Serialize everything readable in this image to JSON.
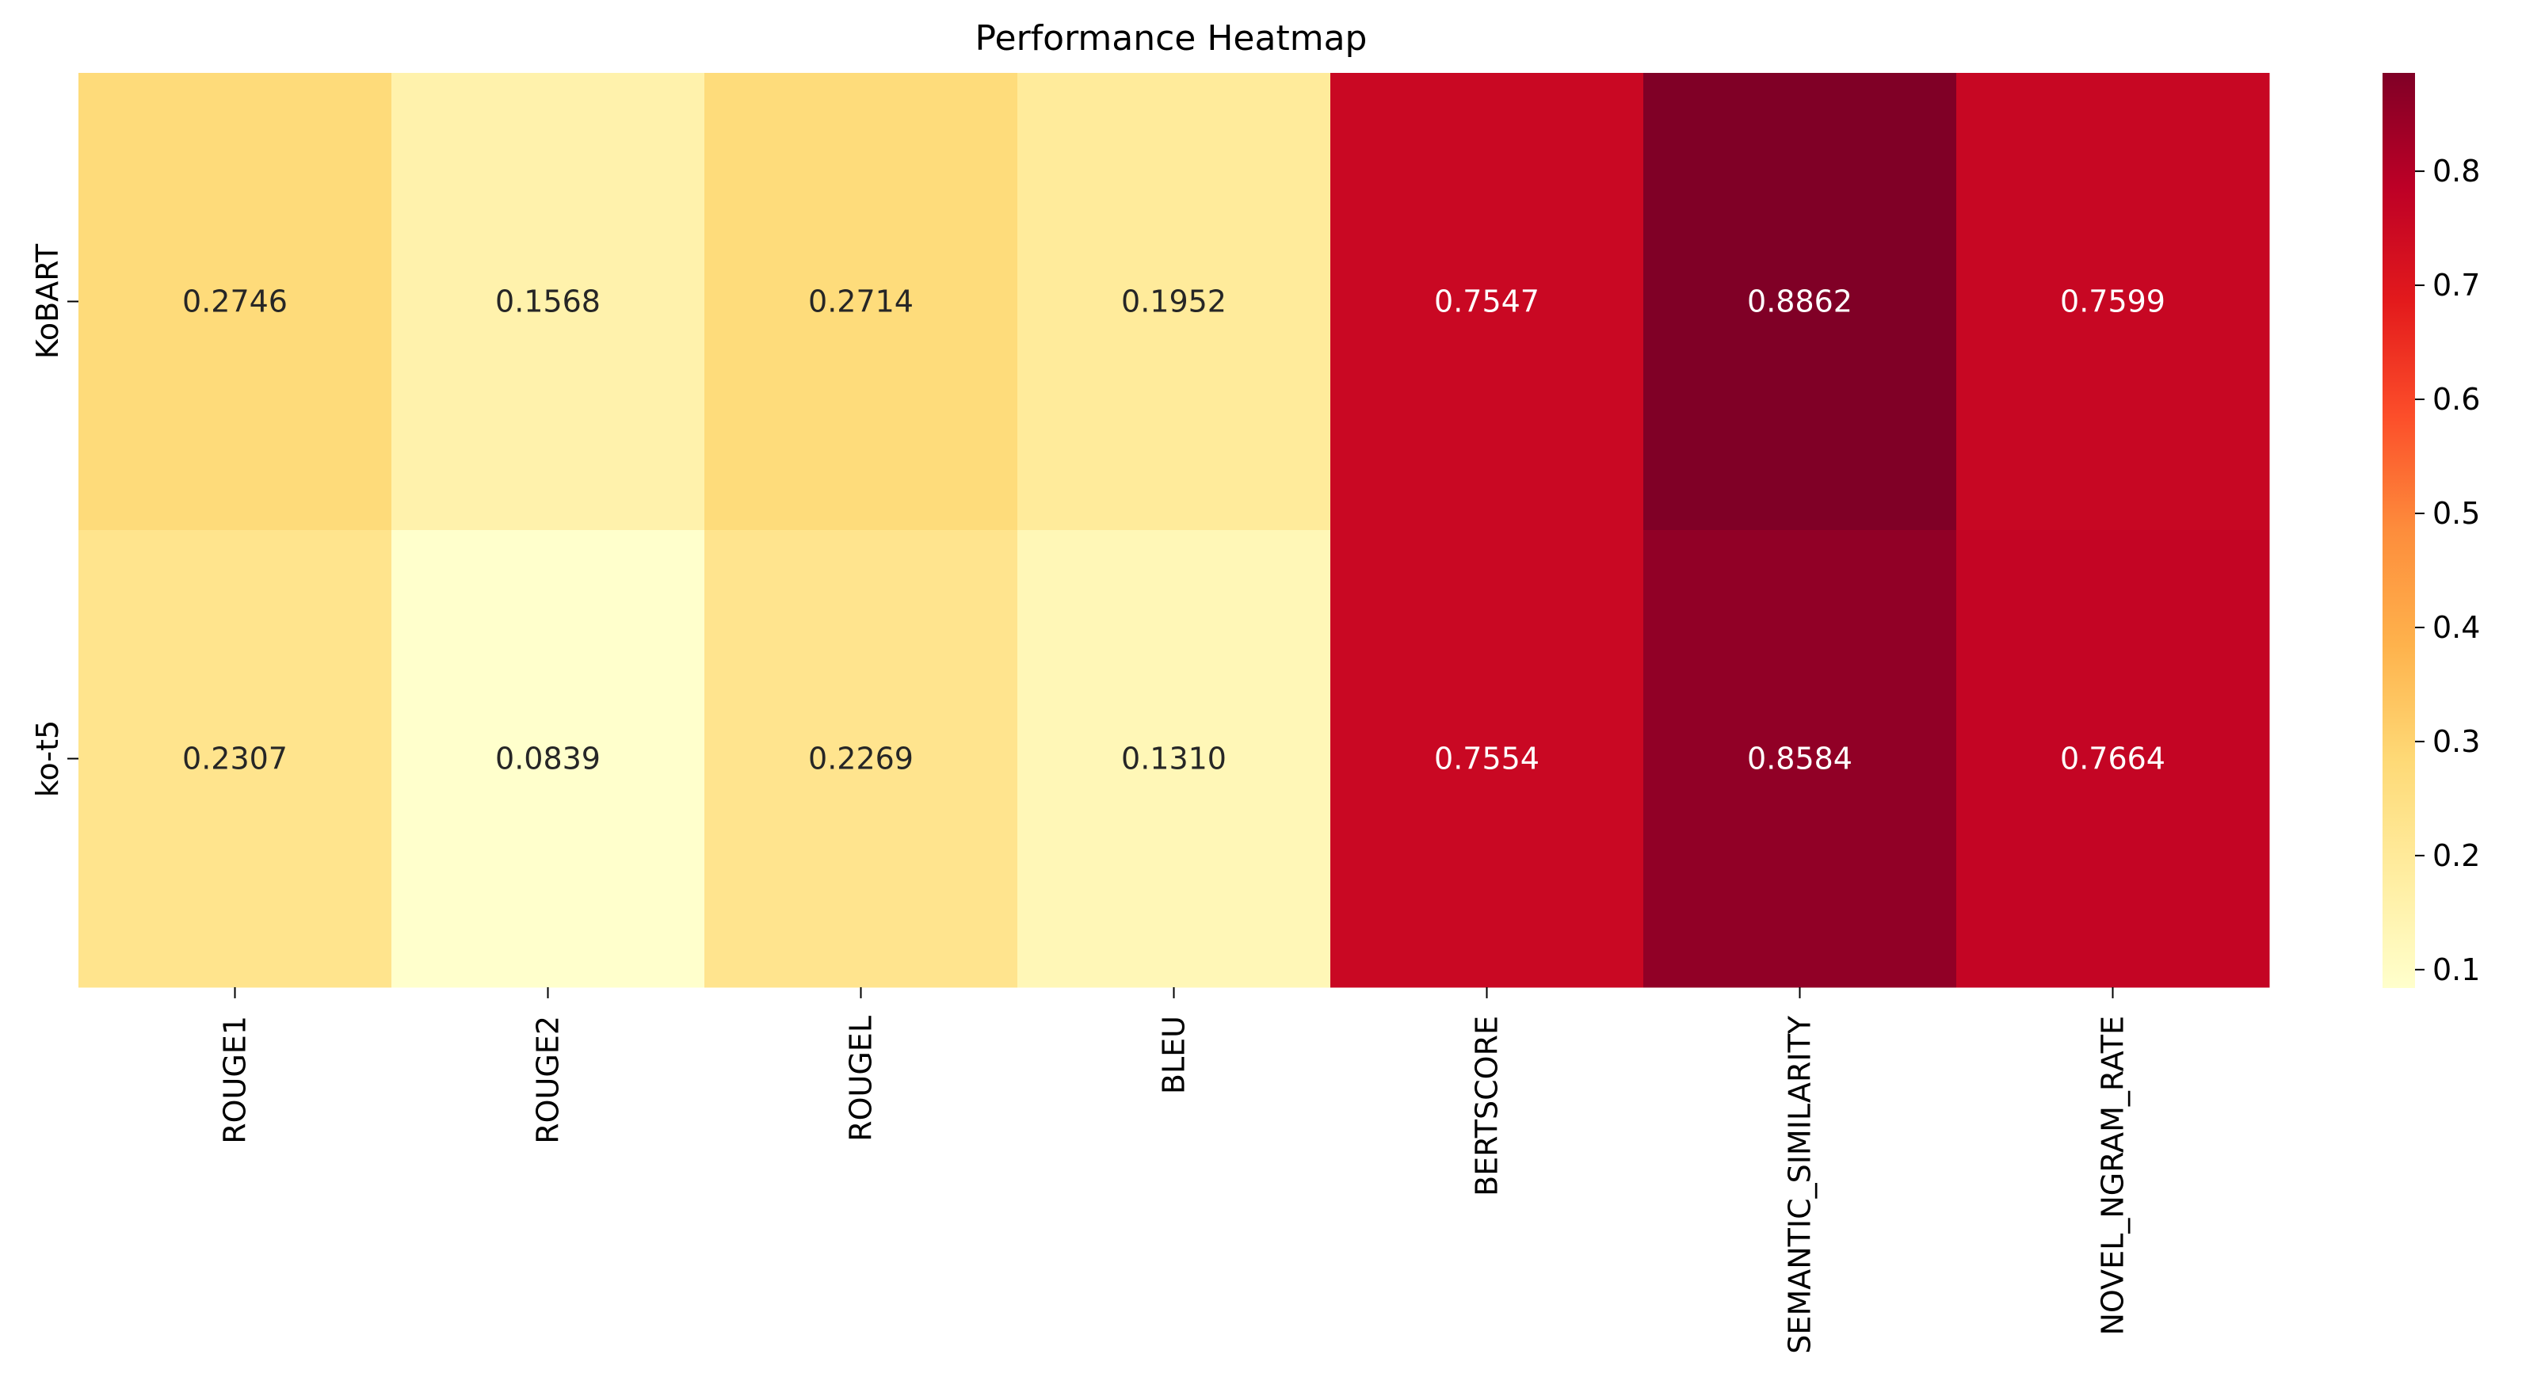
{
  "chart_data": {
    "type": "heatmap",
    "title": "Performance Heatmap",
    "xlabel": "",
    "ylabel": "",
    "columns": [
      "ROUGE1",
      "ROUGE2",
      "ROUGEL",
      "BLEU",
      "BERTSCORE",
      "SEMANTIC_SIMILARITY",
      "NOVEL_NGRAM_RATE"
    ],
    "rows": [
      "KoBART",
      "ko-t5"
    ],
    "values": [
      [
        0.2746,
        0.1568,
        0.2714,
        0.1952,
        0.7547,
        0.8862,
        0.7599
      ],
      [
        0.2307,
        0.0839,
        0.2269,
        0.131,
        0.7554,
        0.8584,
        0.7664
      ]
    ],
    "cell_labels": [
      [
        "0.2746",
        "0.1568",
        "0.2714",
        "0.1952",
        "0.7547",
        "0.8862",
        "0.7599"
      ],
      [
        "0.2307",
        "0.0839",
        "0.2269",
        "0.1310",
        "0.7554",
        "0.8584",
        "0.7664"
      ]
    ],
    "colormap": "YlOrRd",
    "colorbar": {
      "vmin": 0.0839,
      "vmax": 0.8862,
      "ticks": [
        0.1,
        0.2,
        0.3,
        0.4,
        0.5,
        0.6,
        0.7,
        0.8
      ],
      "tick_labels": [
        "0.1",
        "0.2",
        "0.3",
        "0.4",
        "0.5",
        "0.6",
        "0.7",
        "0.8"
      ]
    },
    "grid": false,
    "legend": "colorbar-right"
  }
}
